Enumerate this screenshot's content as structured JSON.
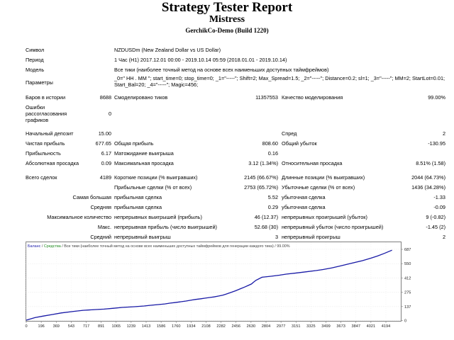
{
  "header": {
    "title": "Strategy Tester Report",
    "subtitle": "Mistress",
    "build": "GerchikCo-Demo (Build 1220)"
  },
  "info": {
    "symbol_label": "Символ",
    "symbol_value": "NZDUSDm (New Zealand Dollar vs US Dollar)",
    "period_label": "Период",
    "period_value": "1 Час (H1) 2017.12.01 00:00 - 2019.10.14 05:59 (2018.01.01 - 2019.10.14)",
    "model_label": "Модель",
    "model_value": "Все тики (наиболее точный метод на основе всех наименьших доступных таймфреймов)",
    "params_label": "Параметры",
    "params_value": "_0=\" HH . MM \"; start_time=0; stop_time=0; _1=\"-----\"; Shift=2; Max_Spread=1.5; _2=\"-----\"; Distance=0.2; sl=1; _3=\"-----\"; MM=2; StartLot=0.01; Start_Bal=20; _4=\"-----\"; Magic=456;"
  },
  "stats": {
    "bars_label": "Баров в истории",
    "bars_value": "8688",
    "ticks_label": "Смоделировано тиков",
    "ticks_value": "11357553",
    "quality_label": "Качество моделирования",
    "quality_value": "99.00%",
    "errors_label": "Ошибки рассогласования графиков",
    "errors_value": "0",
    "deposit_label": "Начальный депозит",
    "deposit_value": "15.00",
    "spread_label": "Спред",
    "spread_value": "2",
    "net_label": "Чистая прибыль",
    "net_value": "677.65",
    "gross_profit_label": "Общая прибыль",
    "gross_profit_value": "808.60",
    "gross_loss_label": "Общий убыток",
    "gross_loss_value": "-130.95",
    "pf_label": "Прибыльность",
    "pf_value": "6.17",
    "expect_label": "Матожидание выигрыша",
    "expect_value": "0.16",
    "abs_dd_label": "Абсолютная просадка",
    "abs_dd_value": "0.09",
    "max_dd_label": "Максимальная просадка",
    "max_dd_value": "3.12 (1.34%)",
    "rel_dd_label": "Относительная просадка",
    "rel_dd_value": "8.51% (1.58)",
    "total_label": "Всего сделок",
    "total_value": "4189",
    "short_label": "Короткие позиции (% выигравших)",
    "short_value": "2145 (66.67%)",
    "long_label": "Длинные позиции (% выигравших)",
    "long_value": "2044 (64.73%)",
    "profit_trades_label": "Прибыльные сделки (% от всех)",
    "profit_trades_value": "2753 (65.72%)",
    "loss_trades_label": "Убыточные сделки (% от всех)",
    "loss_trades_value": "1436 (34.28%)",
    "largest_label": "Самая большая",
    "largest_profit_label": "прибыльная сделка",
    "largest_profit_value": "5.52",
    "largest_loss_label": "убыточная сделка",
    "largest_loss_value": "-1.33",
    "average_label": "Средняя",
    "average_profit_label": "прибыльная сделка",
    "average_profit_value": "0.29",
    "average_loss_label": "убыточная сделка",
    "average_loss_value": "-0.09",
    "max_label": "Максимальное количество",
    "max_wins_label": "непрерывных выигрышей (прибыль)",
    "max_wins_value": "46 (12.37)",
    "max_losses_label": "непрерывных проигрышей (убыток)",
    "max_losses_value": "9 (-0.82)",
    "maxi_label": "Макс.",
    "maxi_profit_label": "непрерывная прибыль (число выигрышей)",
    "maxi_profit_value": "52.68 (30)",
    "maxi_loss_label": "непрерывный убыток (число проигрышей)",
    "maxi_loss_value": "-1.45 (2)",
    "avg_label": "Средний",
    "avg_wins_label": "непрерывный выигрыш",
    "avg_wins_value": "3",
    "avg_losses_label": "непрерывный проигрыш",
    "avg_losses_value": "2"
  },
  "chart_legend": {
    "balance": "Баланс",
    "sep1": " / ",
    "equity": "Средства",
    "rest": " / Все тики (наиболее точный метод на основе всех наименьших доступных таймфреймов для генерации каждого тика) / 99.00%"
  },
  "chart_data": {
    "type": "line",
    "title": "",
    "xlabel": "",
    "ylabel": "",
    "xlim": [
      0,
      4282
    ],
    "ylim": [
      15,
      700
    ],
    "x_ticks": [
      "0",
      "196",
      "369",
      "543",
      "717",
      "891",
      "1065",
      "1239",
      "1413",
      "1586",
      "1760",
      "1934",
      "2108",
      "2282",
      "2456",
      "2630",
      "2804",
      "2977",
      "3151",
      "3325",
      "3499",
      "3673",
      "3847",
      "4021",
      "4194"
    ],
    "y_ticks": [
      "687",
      "550",
      "412",
      "275",
      "137",
      "0"
    ],
    "grid": true,
    "series": [
      {
        "color_balance": "#1a1aa8",
        "x": [
          0,
          100,
          196,
          300,
          400,
          543,
          650,
          800,
          891,
          1000,
          1100,
          1239,
          1350,
          1413,
          1500,
          1586,
          1650,
          1700,
          1760,
          1830,
          1900,
          1934,
          2000,
          2050,
          2108,
          2150,
          2200,
          2250,
          2282,
          2350,
          2400,
          2456,
          2500,
          2540,
          2580,
          2600,
          2630,
          2700,
          2804,
          2900,
          2977,
          3100,
          3200,
          3325,
          3400,
          3499,
          3600,
          3700,
          3847,
          3950,
          4021,
          4100,
          4189
        ],
        "y": [
          15,
          40,
          55,
          70,
          85,
          100,
          110,
          118,
          122,
          130,
          138,
          145,
          152,
          158,
          165,
          172,
          180,
          185,
          192,
          200,
          210,
          215,
          222,
          228,
          235,
          240,
          248,
          256,
          265,
          285,
          300,
          320,
          335,
          350,
          365,
          380,
          400,
          430,
          440,
          450,
          460,
          472,
          482,
          495,
          505,
          520,
          540,
          560,
          590,
          615,
          635,
          660,
          692
        ]
      }
    ]
  }
}
